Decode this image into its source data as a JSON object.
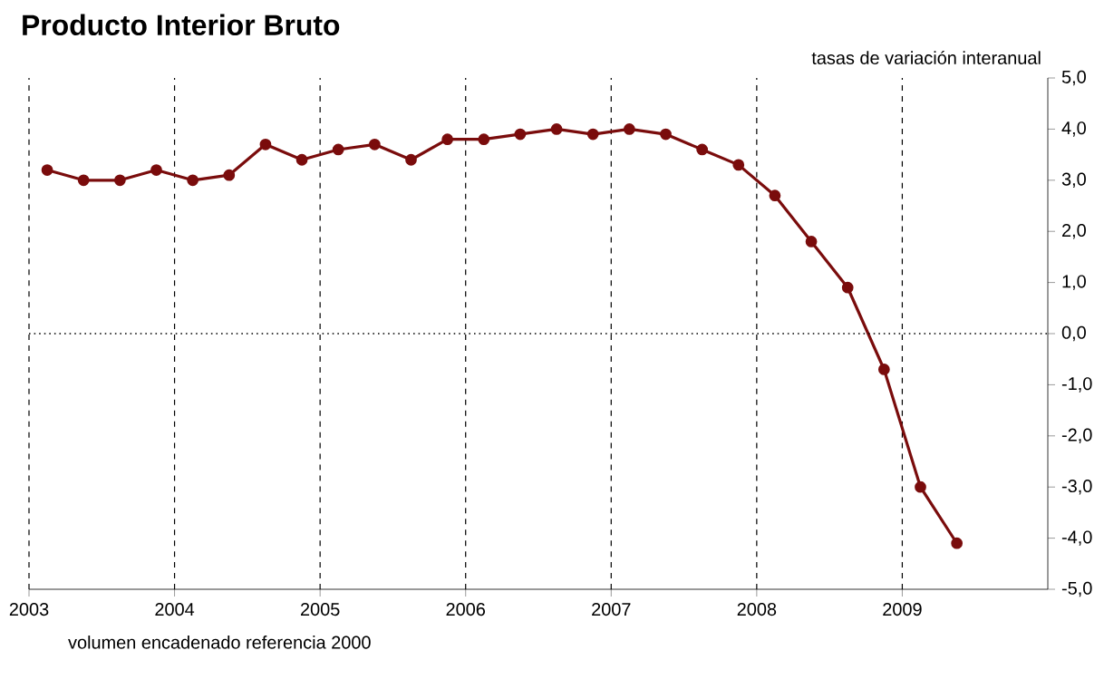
{
  "chart_data": {
    "type": "line",
    "title": "Producto Interior Bruto",
    "ylabel": "tasas de variación interanual",
    "annotations": [
      "volumen encadenado referencia 2000"
    ],
    "x": [
      2003.125,
      2003.375,
      2003.625,
      2003.875,
      2004.125,
      2004.375,
      2004.625,
      2004.875,
      2005.125,
      2005.375,
      2005.625,
      2005.875,
      2006.125,
      2006.375,
      2006.625,
      2006.875,
      2007.125,
      2007.375,
      2007.625,
      2007.875,
      2008.125,
      2008.375,
      2008.625,
      2008.875,
      2009.125,
      2009.375
    ],
    "series": [
      {
        "color": "#7a0c0c",
        "values": [
          3.2,
          3.0,
          3.0,
          3.2,
          3.0,
          3.1,
          3.7,
          3.4,
          3.6,
          3.7,
          3.4,
          3.8,
          3.8,
          3.9,
          4.0,
          3.9,
          4.0,
          3.9,
          3.6,
          3.3,
          2.7,
          1.8,
          0.9,
          -0.7,
          -3.0,
          -4.1
        ]
      }
    ],
    "xlim": [
      2003,
      2010
    ],
    "xticks": [
      2003,
      2004,
      2005,
      2006,
      2007,
      2008,
      2009
    ],
    "ylim": [
      -5,
      5
    ],
    "yticks": [
      {
        "value": 5,
        "label": "5,0"
      },
      {
        "value": 4,
        "label": "4,0"
      },
      {
        "value": 3,
        "label": "3,0"
      },
      {
        "value": 2,
        "label": "2,0"
      },
      {
        "value": 1,
        "label": "1,0"
      },
      {
        "value": 0,
        "label": "0,0"
      },
      {
        "value": -1,
        "label": "-1,0"
      },
      {
        "value": -2,
        "label": "-2,0"
      },
      {
        "value": -3,
        "label": "-3,0"
      },
      {
        "value": -4,
        "label": "-4,0"
      },
      {
        "value": -5,
        "label": "-5,0"
      }
    ],
    "ref_lines": [
      {
        "axis": "y",
        "value": 0,
        "line_style": "dotted"
      }
    ],
    "grid": "x",
    "marker": "circle",
    "line_style": "solid"
  }
}
